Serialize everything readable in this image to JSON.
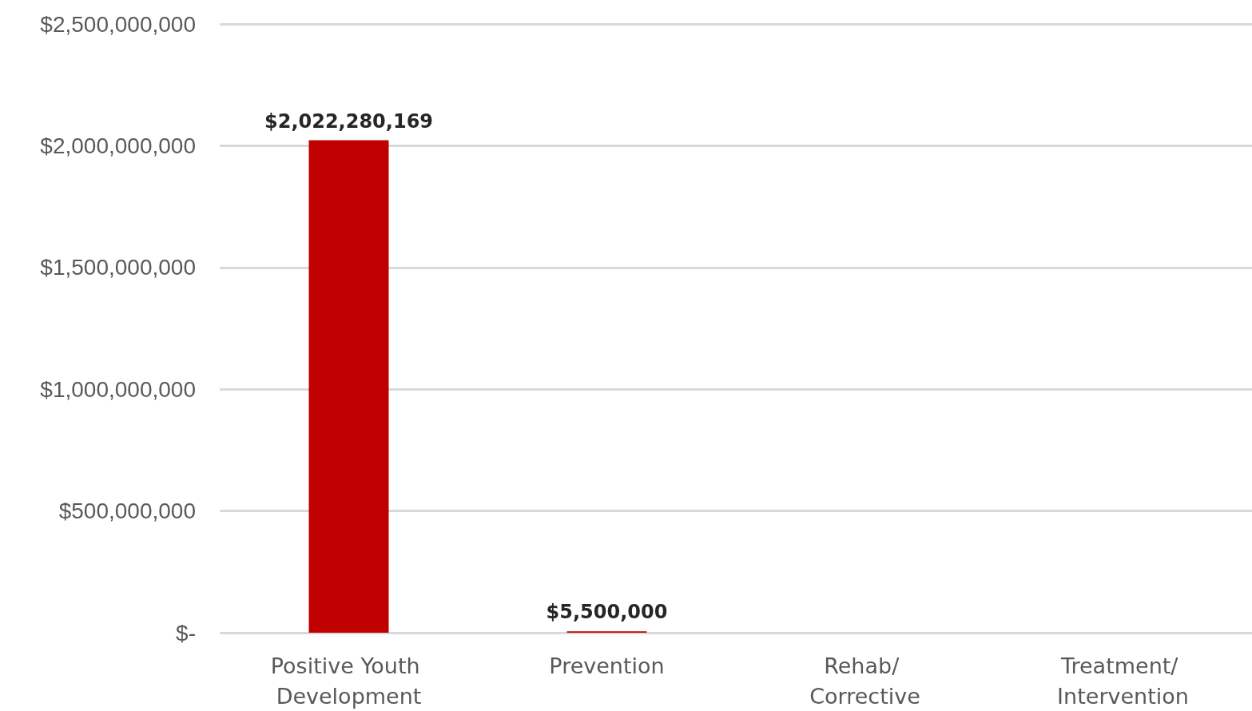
{
  "chart_data": {
    "type": "bar",
    "categories": [
      "Positive Youth Development",
      "Prevention",
      "Rehab/ Corrective",
      "Treatment/ Intervention"
    ],
    "values": [
      2022280169,
      5500000,
      null,
      null
    ],
    "value_labels": [
      "$2,022,280,169",
      "$5,500,000",
      null,
      null
    ],
    "color": "#c00000",
    "ylim": [
      0,
      2500000000
    ],
    "yticks": [
      {
        "value": 0,
        "label": "$-"
      },
      {
        "value": 500000000,
        "label": "$500,000,000"
      },
      {
        "value": 1000000000,
        "label": "$1,000,000,000"
      },
      {
        "value": 1500000000,
        "label": "$1,500,000,000"
      },
      {
        "value": 2000000000,
        "label": "$2,000,000,000"
      },
      {
        "value": 2500000000,
        "label": "$2,500,000,000"
      }
    ],
    "grid": "y"
  }
}
